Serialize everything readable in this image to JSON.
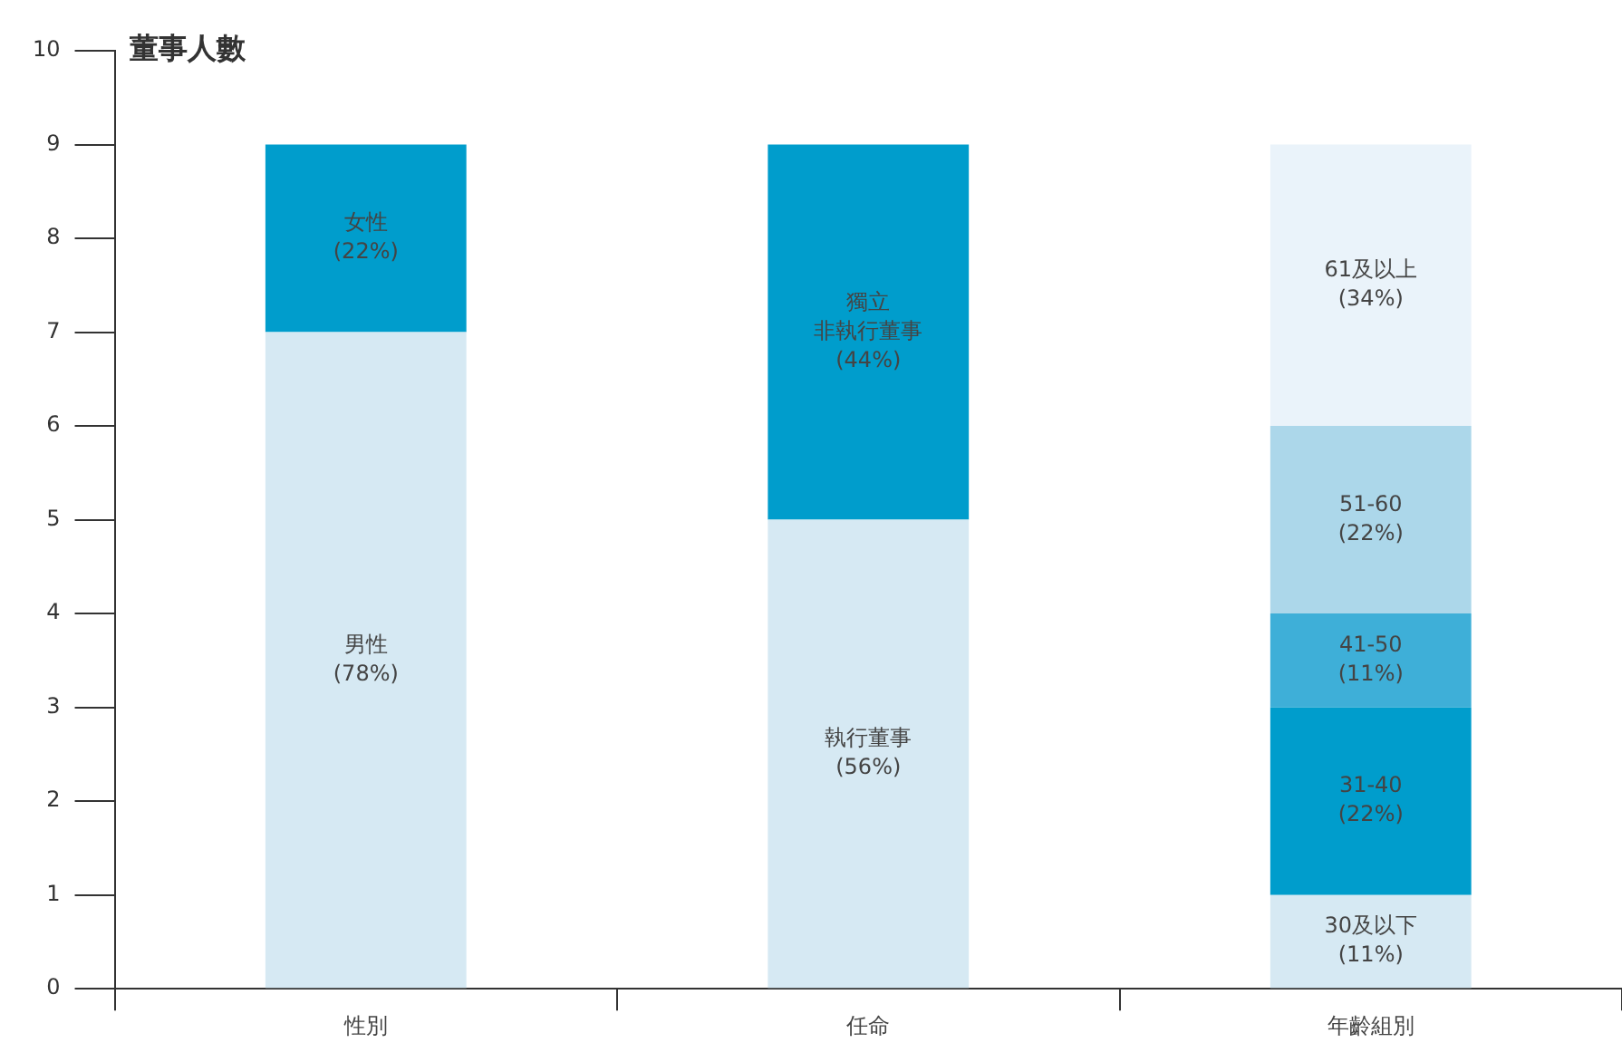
{
  "chart_data": {
    "type": "bar",
    "stacked": true,
    "ylabel": "董事人數",
    "categories": [
      "性別",
      "任命",
      "年齡組別"
    ],
    "ylim": [
      0,
      10
    ],
    "yticks": [
      0,
      1,
      2,
      3,
      4,
      5,
      6,
      7,
      8,
      9,
      10
    ],
    "grid": false,
    "legend": false,
    "series": [
      {
        "color": "#d6e9f3",
        "values": [
          7,
          5,
          1
        ]
      },
      {
        "color": "#009dcc",
        "values": [
          2,
          4,
          2
        ]
      },
      {
        "color": "#3eafd8",
        "values": [
          null,
          null,
          1
        ]
      },
      {
        "color": "#acd7ea",
        "values": [
          null,
          null,
          2
        ]
      },
      {
        "color": "#eaf3fa",
        "values": [
          null,
          null,
          3
        ]
      }
    ],
    "annotations": [
      "男性 (78%)",
      "執行董事 (56%)",
      "30及以下 (11%)",
      "女性 (22%)",
      "獨立非執行董事 (44%)",
      "31-40 (22%)",
      "41-50 (11%)",
      "51-60 (22%)",
      "61及以上 (34%)"
    ]
  }
}
